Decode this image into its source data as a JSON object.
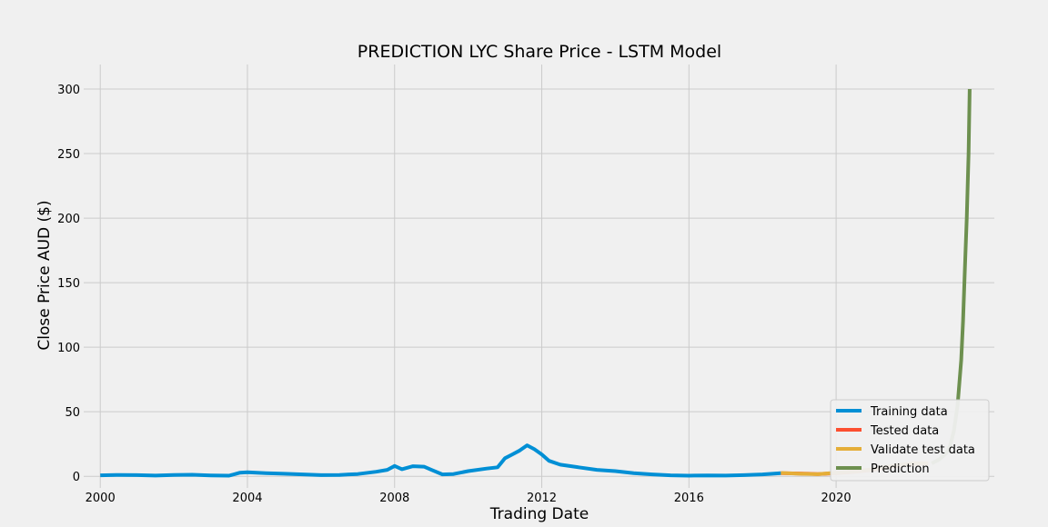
{
  "chart_data": {
    "type": "line",
    "title": "PREDICTION LYC Share Price - LSTM Model",
    "xlabel": "Trading Date",
    "ylabel": "Close Price AUD ($)",
    "xlim": [
      1999.55,
      2024.3
    ],
    "ylim": [
      -9,
      319
    ],
    "x_ticks": [
      2000,
      2004,
      2008,
      2012,
      2016,
      2020
    ],
    "x_tick_labels": [
      "2000",
      "2004",
      "2008",
      "2012",
      "2016",
      "2020"
    ],
    "y_ticks": [
      0,
      50,
      100,
      150,
      200,
      250,
      300
    ],
    "y_tick_labels": [
      "0",
      "50",
      "100",
      "150",
      "200",
      "250",
      "300"
    ],
    "grid": true,
    "legend_position": "bottom-right",
    "series": [
      {
        "name": "Training data",
        "color": "#008fd5",
        "points": [
          [
            2000.0,
            0.8
          ],
          [
            2000.5,
            1.1
          ],
          [
            2001.0,
            0.9
          ],
          [
            2001.5,
            0.6
          ],
          [
            2002.0,
            1.0
          ],
          [
            2002.5,
            1.2
          ],
          [
            2003.0,
            0.7
          ],
          [
            2003.5,
            0.5
          ],
          [
            2003.8,
            2.8
          ],
          [
            2004.0,
            3.2
          ],
          [
            2004.5,
            2.5
          ],
          [
            2005.0,
            2.0
          ],
          [
            2005.5,
            1.5
          ],
          [
            2006.0,
            0.9
          ],
          [
            2006.5,
            1.1
          ],
          [
            2007.0,
            1.8
          ],
          [
            2007.5,
            3.5
          ],
          [
            2007.8,
            5.0
          ],
          [
            2008.0,
            8.0
          ],
          [
            2008.2,
            5.5
          ],
          [
            2008.5,
            7.8
          ],
          [
            2008.8,
            7.5
          ],
          [
            2009.0,
            5.0
          ],
          [
            2009.3,
            1.5
          ],
          [
            2009.6,
            1.8
          ],
          [
            2010.0,
            4.0
          ],
          [
            2010.5,
            6.0
          ],
          [
            2010.8,
            7.0
          ],
          [
            2011.0,
            14.0
          ],
          [
            2011.2,
            17.0
          ],
          [
            2011.4,
            20.0
          ],
          [
            2011.6,
            24.0
          ],
          [
            2011.8,
            21.0
          ],
          [
            2012.0,
            17.0
          ],
          [
            2012.2,
            12.0
          ],
          [
            2012.5,
            9.0
          ],
          [
            2013.0,
            7.0
          ],
          [
            2013.5,
            5.0
          ],
          [
            2014.0,
            4.0
          ],
          [
            2014.5,
            2.5
          ],
          [
            2015.0,
            1.5
          ],
          [
            2015.5,
            0.8
          ],
          [
            2016.0,
            0.5
          ],
          [
            2016.5,
            0.7
          ],
          [
            2017.0,
            0.6
          ],
          [
            2017.5,
            0.9
          ],
          [
            2018.0,
            1.5
          ],
          [
            2018.5,
            2.5
          ]
        ]
      },
      {
        "name": "Tested data",
        "color": "#fc4f30",
        "points": [
          [
            2018.5,
            2.5
          ],
          [
            2019.0,
            2.2
          ],
          [
            2019.5,
            1.8
          ],
          [
            2020.0,
            2.5
          ],
          [
            2020.5,
            3.5
          ],
          [
            2021.0,
            5.0
          ],
          [
            2021.5,
            7.5
          ],
          [
            2022.0,
            9.5
          ],
          [
            2022.5,
            10.0
          ]
        ]
      },
      {
        "name": "Validate test data",
        "color": "#e5ae38",
        "points": [
          [
            2018.5,
            2.6
          ],
          [
            2019.0,
            2.0
          ],
          [
            2019.5,
            1.6
          ],
          [
            2020.0,
            2.8
          ],
          [
            2020.5,
            3.8
          ],
          [
            2021.0,
            5.5
          ],
          [
            2021.5,
            8.0
          ],
          [
            2022.0,
            9.8
          ],
          [
            2022.5,
            10.2
          ]
        ]
      },
      {
        "name": "Prediction",
        "color": "#6d904f",
        "points": [
          [
            2022.6,
            10.0
          ],
          [
            2022.8,
            13.0
          ],
          [
            2023.0,
            18.0
          ],
          [
            2023.1,
            24.0
          ],
          [
            2023.2,
            35.0
          ],
          [
            2023.3,
            55.0
          ],
          [
            2023.4,
            90.0
          ],
          [
            2023.45,
            120.0
          ],
          [
            2023.5,
            160.0
          ],
          [
            2023.55,
            200.0
          ],
          [
            2023.6,
            250.0
          ],
          [
            2023.63,
            300.0
          ]
        ]
      }
    ]
  }
}
